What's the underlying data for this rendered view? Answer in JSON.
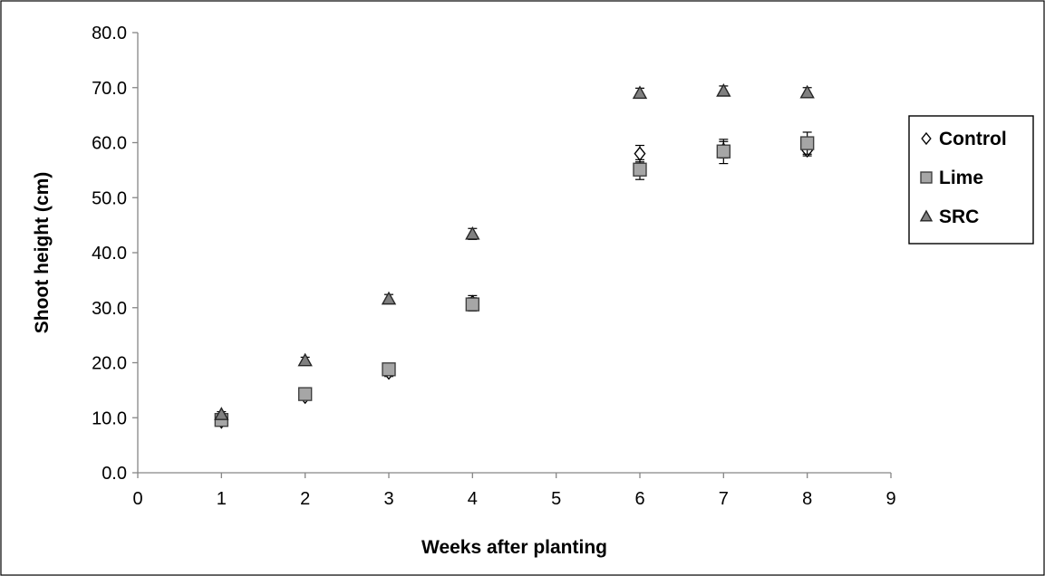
{
  "chart_data": {
    "type": "scatter",
    "xlabel": "Weeks after planting",
    "ylabel": "Shoot height (cm)",
    "xlim": [
      0,
      9
    ],
    "ylim": [
      0,
      80
    ],
    "x_ticks": [
      0,
      1,
      2,
      3,
      4,
      5,
      6,
      7,
      8,
      9
    ],
    "y_ticks": [
      "0.0",
      "10.0",
      "20.0",
      "30.0",
      "40.0",
      "50.0",
      "60.0",
      "70.0",
      "80.0"
    ],
    "grid": false,
    "legend_position": "right",
    "series": [
      {
        "name": "Control",
        "marker": "diamond-open",
        "color": "#000000",
        "points": [
          {
            "x": 1,
            "y": 9.3,
            "err": 0.6
          },
          {
            "x": 2,
            "y": 13.8,
            "err": 0.6
          },
          {
            "x": 3,
            "y": 18.2,
            "err": 0.7
          },
          {
            "x": 4,
            "y": 31.0,
            "err": 1.2
          },
          {
            "x": 6,
            "y": 58.0,
            "err": 1.5
          },
          {
            "x": 7,
            "y": 58.7,
            "err": 1.5
          },
          {
            "x": 8,
            "y": 58.6,
            "err": 1.0
          }
        ]
      },
      {
        "name": "Lime",
        "marker": "square",
        "color": "#a6a6a6",
        "points": [
          {
            "x": 1,
            "y": 9.6,
            "err": 0.6
          },
          {
            "x": 2,
            "y": 14.3,
            "err": 0.7
          },
          {
            "x": 3,
            "y": 18.8,
            "err": 0.8
          },
          {
            "x": 4,
            "y": 30.6,
            "err": 1.2
          },
          {
            "x": 6,
            "y": 55.1,
            "err": 1.8
          },
          {
            "x": 7,
            "y": 58.4,
            "err": 2.2
          },
          {
            "x": 8,
            "y": 59.9,
            "err": 2.0
          }
        ]
      },
      {
        "name": "SRC",
        "marker": "triangle",
        "color": "#808080",
        "points": [
          {
            "x": 1,
            "y": 10.6,
            "err": 0.5
          },
          {
            "x": 2,
            "y": 20.4,
            "err": 0.6
          },
          {
            "x": 3,
            "y": 31.6,
            "err": 0.8
          },
          {
            "x": 4,
            "y": 43.4,
            "err": 1.0
          },
          {
            "x": 6,
            "y": 69.0,
            "err": 0.9
          },
          {
            "x": 7,
            "y": 69.4,
            "err": 0.9
          },
          {
            "x": 8,
            "y": 69.1,
            "err": 0.9
          }
        ]
      }
    ]
  }
}
